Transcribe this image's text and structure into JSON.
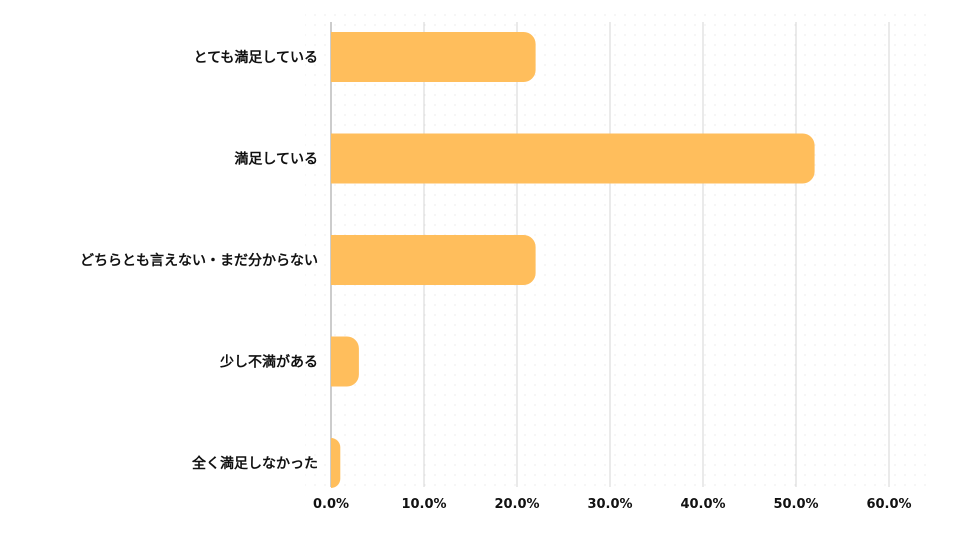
{
  "chart_data": {
    "type": "bar",
    "orientation": "horizontal",
    "categories": [
      "とても満足している",
      "満足している",
      "どちらとも言えない・まだ分からない",
      "少し不満がある",
      "全く満足しなかった"
    ],
    "values": [
      22.0,
      52.0,
      22.0,
      3.0,
      1.0
    ],
    "xlim": [
      0,
      60
    ],
    "ticks": [
      "0.0%",
      "10.0%",
      "20.0%",
      "30.0%",
      "40.0%",
      "50.0%",
      "60.0%"
    ],
    "grid": true,
    "bar_color": "#FFBE5C",
    "title": "",
    "xlabel": "",
    "ylabel": ""
  }
}
